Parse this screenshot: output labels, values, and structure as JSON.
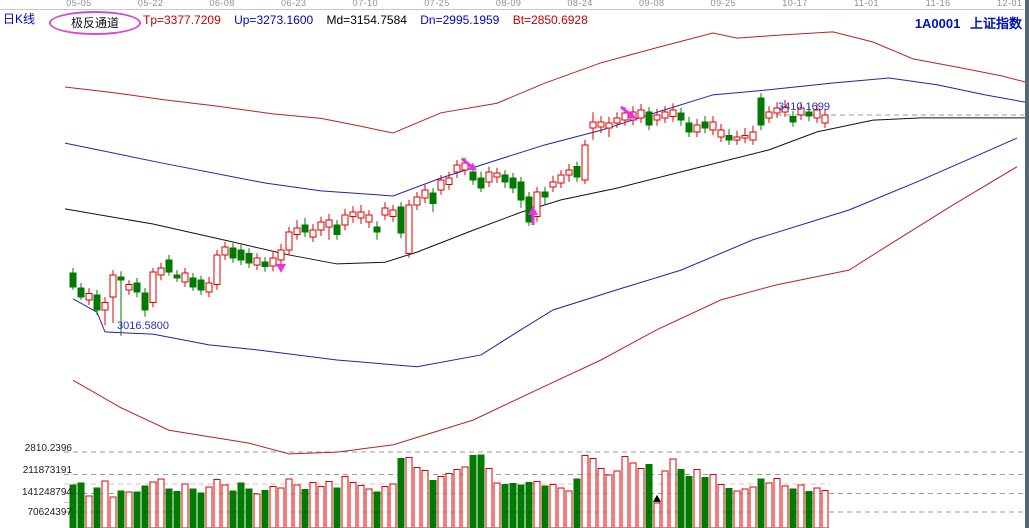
{
  "header": {
    "kline_label": "日K线",
    "channel_badge": "极反通道",
    "params": [
      {
        "label": "Tp=3377.7209",
        "color": "#c80000"
      },
      {
        "label": "Up=3273.1600",
        "color": "#0000cc"
      },
      {
        "label": "Md=3154.7584",
        "color": "#000000"
      },
      {
        "label": "Dn=2995.1959",
        "color": "#0000cc"
      },
      {
        "label": "Bt=2850.6928",
        "color": "#c80000"
      }
    ],
    "code": "1A0001",
    "index_name": "上证指数"
  },
  "axis": {
    "dates": [
      "05-05",
      "05-22",
      "06-08",
      "06-23",
      "07-10",
      "07-25",
      "08-09",
      "08-24",
      "09-08",
      "09-25",
      "10-17",
      "11-01",
      "11-16",
      "12-01"
    ],
    "price_label": "2810.2396",
    "volume_labels": [
      "211873191",
      "141248794",
      "70624397"
    ]
  },
  "annotations": {
    "low_label": "3016.5800",
    "last_label": "3410.1699"
  },
  "chart_data": {
    "type": "candlestick_with_volume",
    "title": "1A0001 上证指数 日K线 极反通道",
    "x_labels": [
      "05-05",
      "05-22",
      "06-08",
      "06-23",
      "07-10",
      "07-25",
      "08-09",
      "08-24",
      "09-08",
      "09-25",
      "10-17",
      "11-01",
      "11-16",
      "12-01"
    ],
    "price_ylim": [
      2805,
      3600
    ],
    "volume_ylim": [
      0,
      290000000
    ],
    "grid": {
      "price_gridline": 2810.2396,
      "volume_gridlines": [
        211873191,
        141248794,
        70624397
      ],
      "volume_halflines": [
        176500000,
        105900000
      ]
    },
    "last_close_line": {
      "price": 3410.17,
      "from_day": 88
    },
    "colors": {
      "up": "#dd0000",
      "down": "#007a00",
      "upper_channel": "#bb2222",
      "lower_channel": "#bb2222",
      "mid": "#111111",
      "inner_channel": "#2222aa",
      "marker": "#e832e8"
    },
    "candles": [
      [
        3129,
        3138,
        3099,
        3104,
        172000000
      ],
      [
        3102,
        3111,
        3081,
        3086,
        180000000
      ],
      [
        3081,
        3102,
        3072,
        3092,
        131000000
      ],
      [
        3090,
        3099,
        3054,
        3063,
        161000000
      ],
      [
        3063,
        3086,
        3036,
        3076,
        187000000
      ],
      [
        3086,
        3134,
        3040,
        3125,
        127000000
      ],
      [
        3122,
        3132,
        3017,
        3116,
        150000000
      ],
      [
        3099,
        3116,
        3090,
        3108,
        146000000
      ],
      [
        3111,
        3120,
        3086,
        3095,
        146000000
      ],
      [
        3093,
        3102,
        3051,
        3063,
        168000000
      ],
      [
        3076,
        3138,
        3068,
        3131,
        183000000
      ],
      [
        3125,
        3147,
        3116,
        3138,
        195000000
      ],
      [
        3152,
        3161,
        3124,
        3131,
        157000000
      ],
      [
        3125,
        3134,
        3113,
        3120,
        148000000
      ],
      [
        3113,
        3138,
        3104,
        3129,
        176000000
      ],
      [
        3120,
        3129,
        3097,
        3104,
        158000000
      ],
      [
        3116,
        3124,
        3090,
        3099,
        142000000
      ],
      [
        3095,
        3122,
        3086,
        3111,
        165000000
      ],
      [
        3108,
        3170,
        3099,
        3161,
        193000000
      ],
      [
        3161,
        3184,
        3152,
        3175,
        172000000
      ],
      [
        3173,
        3182,
        3147,
        3156,
        149000000
      ],
      [
        3170,
        3179,
        3143,
        3152,
        180000000
      ],
      [
        3164,
        3173,
        3138,
        3147,
        157000000
      ],
      [
        3143,
        3164,
        3134,
        3156,
        138000000
      ],
      [
        3148,
        3157,
        3131,
        3140,
        152000000
      ],
      [
        3141,
        3166,
        3132,
        3156,
        166000000
      ],
      [
        3152,
        3181,
        3143,
        3170,
        161000000
      ],
      [
        3170,
        3211,
        3161,
        3202,
        196000000
      ],
      [
        3197,
        3223,
        3188,
        3209,
        172000000
      ],
      [
        3214,
        3227,
        3193,
        3202,
        156000000
      ],
      [
        3193,
        3216,
        3184,
        3205,
        181000000
      ],
      [
        3205,
        3229,
        3195,
        3220,
        167000000
      ],
      [
        3211,
        3234,
        3188,
        3223,
        186000000
      ],
      [
        3214,
        3223,
        3188,
        3197,
        162000000
      ],
      [
        3214,
        3243,
        3205,
        3232,
        205000000
      ],
      [
        3229,
        3248,
        3218,
        3237,
        182000000
      ],
      [
        3227,
        3250,
        3216,
        3237,
        171000000
      ],
      [
        3220,
        3241,
        3209,
        3232,
        157000000
      ],
      [
        3211,
        3221,
        3188,
        3202,
        147000000
      ],
      [
        3232,
        3255,
        3223,
        3245,
        167000000
      ],
      [
        3229,
        3250,
        3220,
        3241,
        176000000
      ],
      [
        3246,
        3255,
        3191,
        3200,
        272000000
      ],
      [
        3164,
        3259,
        3156,
        3250,
        276000000
      ],
      [
        3250,
        3273,
        3241,
        3264,
        238000000
      ],
      [
        3262,
        3286,
        3253,
        3277,
        228000000
      ],
      [
        3271,
        3280,
        3237,
        3253,
        190000000
      ],
      [
        3277,
        3303,
        3268,
        3294,
        205000000
      ],
      [
        3286,
        3309,
        3277,
        3298,
        215000000
      ],
      [
        3309,
        3330,
        3298,
        3321,
        230000000
      ],
      [
        3312,
        3334,
        3303,
        3325,
        240000000
      ],
      [
        3309,
        3319,
        3286,
        3294,
        283000000
      ],
      [
        3298,
        3309,
        3273,
        3280,
        285000000
      ],
      [
        3291,
        3318,
        3282,
        3309,
        235000000
      ],
      [
        3300,
        3316,
        3289,
        3307,
        180000000
      ],
      [
        3303,
        3312,
        3280,
        3291,
        175000000
      ],
      [
        3298,
        3307,
        3271,
        3280,
        178000000
      ],
      [
        3291,
        3300,
        3245,
        3259,
        172000000
      ],
      [
        3264,
        3273,
        3213,
        3220,
        182000000
      ],
      [
        3229,
        3282,
        3220,
        3273,
        186000000
      ],
      [
        3273,
        3282,
        3250,
        3264,
        168000000
      ],
      [
        3282,
        3302,
        3273,
        3291,
        175000000
      ],
      [
        3289,
        3312,
        3280,
        3303,
        162000000
      ],
      [
        3303,
        3323,
        3291,
        3312,
        150000000
      ],
      [
        3318,
        3327,
        3291,
        3300,
        195000000
      ],
      [
        3294,
        3366,
        3287,
        3357,
        283000000
      ],
      [
        3387,
        3415,
        3366,
        3398,
        272000000
      ],
      [
        3389,
        3408,
        3378,
        3398,
        235000000
      ],
      [
        3387,
        3407,
        3371,
        3396,
        210000000
      ],
      [
        3396,
        3415,
        3387,
        3405,
        225000000
      ],
      [
        3401,
        3424,
        3391,
        3414,
        280000000
      ],
      [
        3401,
        3426,
        3392,
        3415,
        255000000
      ],
      [
        3405,
        3430,
        3396,
        3419,
        235000000
      ],
      [
        3415,
        3424,
        3383,
        3392,
        250000000
      ],
      [
        3401,
        3421,
        3391,
        3410,
        105000000
      ],
      [
        3405,
        3426,
        3396,
        3415,
        225000000
      ],
      [
        3407,
        3431,
        3398,
        3419,
        270000000
      ],
      [
        3414,
        3423,
        3391,
        3401,
        230000000
      ],
      [
        3396,
        3407,
        3371,
        3380,
        205000000
      ],
      [
        3380,
        3403,
        3371,
        3392,
        230000000
      ],
      [
        3398,
        3408,
        3378,
        3387,
        200000000
      ],
      [
        3383,
        3408,
        3374,
        3398,
        212000000
      ],
      [
        3371,
        3394,
        3362,
        3383,
        175000000
      ],
      [
        3374,
        3385,
        3357,
        3366,
        160000000
      ],
      [
        3366,
        3382,
        3357,
        3371,
        150000000
      ],
      [
        3369,
        3387,
        3360,
        3374,
        158000000
      ],
      [
        3366,
        3391,
        3357,
        3380,
        165000000
      ],
      [
        3440,
        3449,
        3383,
        3392,
        195000000
      ],
      [
        3405,
        3426,
        3396,
        3415,
        180000000
      ],
      [
        3414,
        3433,
        3405,
        3423,
        197000000
      ],
      [
        3415,
        3437,
        3407,
        3424,
        168000000
      ],
      [
        3407,
        3417,
        3389,
        3398,
        158000000
      ],
      [
        3410,
        3433,
        3401,
        3423,
        172000000
      ],
      [
        3415,
        3426,
        3399,
        3408,
        148000000
      ],
      [
        3405,
        3430,
        3396,
        3419,
        162000000
      ],
      [
        3396,
        3421,
        3387,
        3410.17,
        152000000
      ]
    ],
    "channel_lines": {
      "Tp": [
        [
          -1,
          3460
        ],
        [
          5,
          3450
        ],
        [
          11,
          3438
        ],
        [
          18,
          3426
        ],
        [
          25,
          3412
        ],
        [
          31,
          3404
        ],
        [
          36,
          3390
        ],
        [
          40,
          3378
        ],
        [
          46,
          3414
        ],
        [
          53,
          3431
        ],
        [
          59,
          3467
        ],
        [
          66,
          3503
        ],
        [
          73,
          3530
        ],
        [
          80,
          3556
        ],
        [
          83,
          3547
        ],
        [
          88,
          3552
        ],
        [
          95,
          3558
        ],
        [
          100,
          3540
        ],
        [
          105,
          3510
        ],
        [
          111,
          3494
        ],
        [
          116,
          3480
        ],
        [
          119,
          3469
        ]
      ],
      "Up": [
        [
          -1,
          3360
        ],
        [
          11,
          3325
        ],
        [
          24,
          3289
        ],
        [
          31,
          3275
        ],
        [
          40,
          3266
        ],
        [
          46,
          3298
        ],
        [
          53,
          3330
        ],
        [
          59,
          3357
        ],
        [
          66,
          3383
        ],
        [
          73,
          3415
        ],
        [
          80,
          3446
        ],
        [
          87,
          3455
        ],
        [
          95,
          3467
        ],
        [
          102,
          3476
        ],
        [
          108,
          3464
        ],
        [
          114,
          3446
        ],
        [
          119,
          3433
        ]
      ],
      "Md": [
        [
          -1,
          3243
        ],
        [
          10,
          3216
        ],
        [
          20,
          3184
        ],
        [
          27,
          3161
        ],
        [
          33,
          3145
        ],
        [
          39,
          3148
        ],
        [
          43,
          3166
        ],
        [
          50,
          3205
        ],
        [
          56,
          3237
        ],
        [
          61,
          3259
        ],
        [
          68,
          3280
        ],
        [
          78,
          3316
        ],
        [
          87,
          3348
        ],
        [
          93,
          3380
        ],
        [
          100,
          3401
        ],
        [
          106,
          3405
        ],
        [
          119,
          3405
        ]
      ],
      "Dn": [
        [
          0,
          3083
        ],
        [
          3,
          3059
        ],
        [
          4,
          3024
        ],
        [
          10,
          3020
        ],
        [
          17,
          3001
        ],
        [
          23,
          2992
        ],
        [
          33,
          2974
        ],
        [
          43,
          2962
        ],
        [
          51,
          2983
        ],
        [
          56,
          3028
        ],
        [
          60,
          3063
        ],
        [
          68,
          3099
        ],
        [
          76,
          3134
        ],
        [
          85,
          3188
        ],
        [
          97,
          3241
        ],
        [
          106,
          3294
        ],
        [
          118,
          3369
        ]
      ],
      "Bt": [
        [
          0,
          2938
        ],
        [
          6,
          2889
        ],
        [
          12,
          2849
        ],
        [
          22,
          2826
        ],
        [
          27,
          2807
        ],
        [
          33,
          2810
        ],
        [
          40,
          2823
        ],
        [
          50,
          2867
        ],
        [
          58,
          2921
        ],
        [
          66,
          2974
        ],
        [
          73,
          3028
        ],
        [
          81,
          3081
        ],
        [
          88,
          3108
        ],
        [
          97,
          3134
        ],
        [
          101,
          3170
        ],
        [
          110,
          3250
        ],
        [
          118,
          3318
        ]
      ]
    },
    "markers": [
      {
        "shape": "triangle-down",
        "day": 26,
        "price": 3138,
        "color": "#e832e8",
        "pane": "price"
      },
      {
        "shape": "arrow-se",
        "day": 49.6,
        "price": 3320,
        "color": "#e832e8",
        "pane": "price"
      },
      {
        "shape": "arrow-up",
        "day": 57.5,
        "price": 3232,
        "color": "#e832e8",
        "pane": "price"
      },
      {
        "shape": "arrow-se",
        "day": 69.5,
        "price": 3412,
        "color": "#e832e8",
        "pane": "price"
      },
      {
        "shape": "triangle-up",
        "day": 73,
        "price": null,
        "color": "#000000",
        "pane": "volume"
      }
    ],
    "point_annotations": [
      {
        "text": "3016.5800",
        "day": 6,
        "price": 3016.58
      },
      {
        "text": "3410.1699",
        "day": 94,
        "price": 3410.17
      }
    ]
  }
}
